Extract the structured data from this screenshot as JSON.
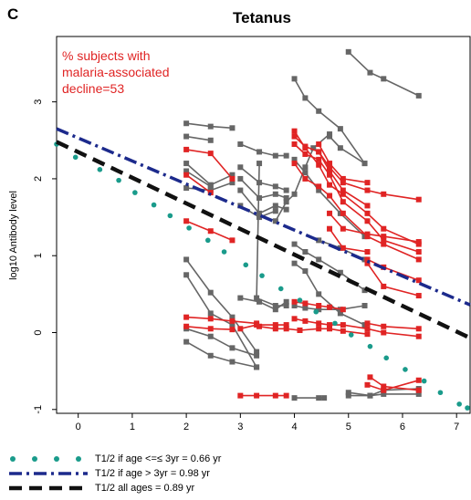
{
  "panel_label": "C",
  "chart_data": {
    "type": "line",
    "title": "Tetanus",
    "xlabel": "",
    "ylabel": "log10 Antibody level",
    "xlim": [
      -0.4,
      7.25
    ],
    "ylim": [
      -1.05,
      3.85
    ],
    "xticks": [
      0,
      1,
      2,
      3,
      4,
      5,
      6,
      7
    ],
    "yticks": [
      -1,
      0,
      1,
      2,
      3
    ],
    "annotation": [
      "% subjects with",
      "malaria-associated",
      "decline=53"
    ],
    "colors": {
      "gray": "#666666",
      "red": "#e02424",
      "teal": "#1a9b8b",
      "navy": "#1c2a8c",
      "black": "#111111"
    },
    "series": [
      {
        "color": "gray",
        "points": [
          [
            2,
            2.72
          ],
          [
            2.45,
            2.68
          ],
          [
            2.85,
            2.66
          ]
        ]
      },
      {
        "color": "gray",
        "points": [
          [
            2,
            2.55
          ],
          [
            2.45,
            2.5
          ]
        ]
      },
      {
        "color": "gray",
        "points": [
          [
            2,
            2.2
          ],
          [
            2.45,
            1.92
          ],
          [
            2.85,
            2.05
          ]
        ]
      },
      {
        "color": "gray",
        "points": [
          [
            2,
            2.1
          ],
          [
            2.45,
            1.9
          ]
        ]
      },
      {
        "color": "gray",
        "points": [
          [
            2,
            1.88
          ],
          [
            2.45,
            1.85
          ],
          [
            2.85,
            1.95
          ]
        ]
      },
      {
        "color": "gray",
        "points": [
          [
            2,
            0.95
          ],
          [
            2.45,
            0.52
          ],
          [
            2.85,
            0.2
          ],
          [
            3.3,
            -0.25
          ]
        ]
      },
      {
        "color": "gray",
        "points": [
          [
            2,
            0.75
          ],
          [
            2.45,
            0.25
          ],
          [
            2.85,
            0.1
          ],
          [
            3.3,
            -0.45
          ]
        ]
      },
      {
        "color": "gray",
        "points": [
          [
            2,
            0.05
          ],
          [
            2.45,
            -0.05
          ],
          [
            2.85,
            -0.2
          ],
          [
            3.3,
            -0.3
          ]
        ]
      },
      {
        "color": "gray",
        "points": [
          [
            2,
            -0.12
          ],
          [
            2.45,
            -0.3
          ],
          [
            2.85,
            -0.38
          ],
          [
            3.3,
            -0.45
          ]
        ]
      },
      {
        "color": "gray",
        "points": [
          [
            3,
            2.45
          ],
          [
            3.35,
            2.35
          ],
          [
            3.65,
            2.3
          ],
          [
            3.85,
            2.3
          ]
        ]
      },
      {
        "color": "gray",
        "points": [
          [
            3,
            2.15
          ],
          [
            3.35,
            1.95
          ],
          [
            3.65,
            1.9
          ],
          [
            3.85,
            1.85
          ]
        ]
      },
      {
        "color": "gray",
        "points": [
          [
            3,
            2.0
          ],
          [
            3.35,
            1.75
          ],
          [
            3.65,
            1.8
          ],
          [
            3.85,
            1.75
          ]
        ]
      },
      {
        "color": "gray",
        "points": [
          [
            3,
            1.85
          ],
          [
            3.35,
            1.55
          ],
          [
            3.65,
            1.65
          ],
          [
            3.85,
            1.6
          ]
        ]
      },
      {
        "color": "gray",
        "points": [
          [
            3,
            1.65
          ],
          [
            3.35,
            1.5
          ],
          [
            3.65,
            1.58
          ]
        ]
      },
      {
        "color": "gray",
        "points": [
          [
            3.35,
            2.2
          ],
          [
            3.3,
            0.45
          ],
          [
            3.65,
            0.35
          ],
          [
            3.85,
            0.35
          ]
        ]
      },
      {
        "color": "gray",
        "points": [
          [
            3,
            0.45
          ],
          [
            3.35,
            0.4
          ],
          [
            3.65,
            0.3
          ],
          [
            3.85,
            0.4
          ]
        ]
      },
      {
        "color": "gray",
        "points": [
          [
            3.65,
            1.45
          ],
          [
            3.85,
            1.7
          ],
          [
            4,
            1.8
          ],
          [
            4.2,
            2.15
          ],
          [
            4.35,
            2.4
          ],
          [
            4.65,
            2.58
          ]
        ]
      },
      {
        "color": "gray",
        "points": [
          [
            4,
            3.3
          ],
          [
            4.2,
            3.05
          ],
          [
            4.45,
            2.88
          ],
          [
            4.85,
            2.65
          ],
          [
            5.3,
            2.2
          ]
        ]
      },
      {
        "color": "gray",
        "points": [
          [
            4,
            2.25
          ],
          [
            4.2,
            2.08
          ],
          [
            4.45,
            1.85
          ],
          [
            4.85,
            1.55
          ],
          [
            5.3,
            1.25
          ]
        ]
      },
      {
        "color": "gray",
        "points": [
          [
            4,
            1.15
          ],
          [
            4.2,
            1.05
          ],
          [
            4.45,
            0.95
          ],
          [
            4.85,
            0.78
          ],
          [
            5.3,
            0.55
          ]
        ]
      },
      {
        "color": "gray",
        "points": [
          [
            4,
            0.9
          ],
          [
            4.2,
            0.8
          ],
          [
            4.45,
            0.5
          ],
          [
            4.85,
            0.25
          ],
          [
            5.3,
            0.1
          ]
        ]
      },
      {
        "color": "gray",
        "points": [
          [
            4,
            0.35
          ],
          [
            4.2,
            0.32
          ],
          [
            4.45,
            0.3
          ],
          [
            4.85,
            0.3
          ],
          [
            5.3,
            0.35
          ]
        ]
      },
      {
        "color": "gray",
        "points": [
          [
            4.65,
            2.55
          ],
          [
            4.85,
            2.4
          ],
          [
            5.3,
            2.2
          ]
        ]
      },
      {
        "color": "gray",
        "points": [
          [
            4.45,
            1.2
          ],
          [
            4.85,
            1.1
          ],
          [
            5.3,
            0.95
          ]
        ]
      },
      {
        "color": "gray",
        "points": [
          [
            5,
            3.65
          ],
          [
            5.4,
            3.38
          ],
          [
            5.65,
            3.3
          ],
          [
            6.3,
            3.08
          ]
        ]
      },
      {
        "color": "gray",
        "points": [
          [
            4,
            -0.85
          ],
          [
            4.45,
            -0.85
          ],
          [
            4.55,
            -0.85
          ]
        ]
      },
      {
        "color": "gray",
        "points": [
          [
            5,
            -0.82
          ],
          [
            5.4,
            -0.82
          ],
          [
            5.65,
            -0.8
          ],
          [
            6.3,
            -0.8
          ]
        ]
      },
      {
        "color": "gray",
        "points": [
          [
            5,
            -0.78
          ],
          [
            5.4,
            -0.82
          ],
          [
            5.65,
            -0.75
          ],
          [
            6.3,
            -0.73
          ]
        ]
      },
      {
        "color": "red",
        "points": [
          [
            2,
            2.38
          ],
          [
            2.45,
            2.33
          ],
          [
            2.85,
            2.0
          ]
        ]
      },
      {
        "color": "red",
        "points": [
          [
            2,
            2.05
          ],
          [
            2.45,
            1.82
          ]
        ]
      },
      {
        "color": "red",
        "points": [
          [
            2,
            1.45
          ],
          [
            2.45,
            1.32
          ],
          [
            2.85,
            1.2
          ]
        ]
      },
      {
        "color": "red",
        "points": [
          [
            2,
            0.2
          ],
          [
            2.45,
            0.18
          ],
          [
            2.85,
            0.15
          ],
          [
            3.3,
            0.12
          ]
        ]
      },
      {
        "color": "red",
        "points": [
          [
            2,
            0.08
          ],
          [
            2.45,
            0.05
          ],
          [
            2.85,
            0.04
          ]
        ]
      },
      {
        "color": "red",
        "points": [
          [
            3,
            0.05
          ],
          [
            3.3,
            0.1
          ],
          [
            3.65,
            0.1
          ],
          [
            3.85,
            0.1
          ]
        ]
      },
      {
        "color": "red",
        "points": [
          [
            3,
            -0.82
          ],
          [
            3.3,
            -0.82
          ],
          [
            3.65,
            -0.82
          ],
          [
            3.85,
            -0.82
          ]
        ]
      },
      {
        "color": "red",
        "points": [
          [
            3.35,
            0.08
          ],
          [
            3.65,
            0.05
          ],
          [
            3.85,
            0.05
          ],
          [
            4.1,
            0.03
          ]
        ]
      },
      {
        "color": "red",
        "points": [
          [
            4,
            2.62
          ],
          [
            4.2,
            2.4
          ],
          [
            4.45,
            2.18
          ],
          [
            4.65,
            1.92
          ],
          [
            4.9,
            1.8
          ],
          [
            5.35,
            1.55
          ],
          [
            5.65,
            1.35
          ],
          [
            6.3,
            1.15
          ]
        ]
      },
      {
        "color": "red",
        "points": [
          [
            4,
            2.55
          ],
          [
            4.2,
            2.42
          ],
          [
            4.45,
            2.35
          ],
          [
            4.65,
            2.15
          ],
          [
            4.9,
            1.95
          ],
          [
            5.35,
            1.85
          ],
          [
            5.65,
            1.8
          ],
          [
            6.3,
            1.73
          ]
        ]
      },
      {
        "color": "red",
        "points": [
          [
            4,
            2.45
          ],
          [
            4.2,
            2.32
          ],
          [
            4.45,
            2.25
          ],
          [
            4.65,
            2.05
          ],
          [
            4.9,
            1.7
          ],
          [
            5.35,
            1.45
          ],
          [
            5.65,
            1.2
          ],
          [
            6.3,
            1.05
          ]
        ]
      },
      {
        "color": "red",
        "points": [
          [
            4,
            2.2
          ],
          [
            4.2,
            2.0
          ],
          [
            4.45,
            1.9
          ],
          [
            4.65,
            1.78
          ],
          [
            4.9,
            1.55
          ],
          [
            5.35,
            1.25
          ],
          [
            5.65,
            1.15
          ],
          [
            6.3,
            0.95
          ]
        ]
      },
      {
        "color": "red",
        "points": [
          [
            4.45,
            2.45
          ],
          [
            4.65,
            2.2
          ],
          [
            4.9,
            2.0
          ],
          [
            5.35,
            1.95
          ]
        ]
      },
      {
        "color": "red",
        "points": [
          [
            4.45,
            2.35
          ],
          [
            4.65,
            2.1
          ],
          [
            4.9,
            1.85
          ],
          [
            5.35,
            1.65
          ]
        ]
      },
      {
        "color": "red",
        "points": [
          [
            4.65,
            1.55
          ],
          [
            4.9,
            1.35
          ],
          [
            5.35,
            1.28
          ],
          [
            5.65,
            1.25
          ],
          [
            6.3,
            1.18
          ]
        ]
      },
      {
        "color": "red",
        "points": [
          [
            4.65,
            1.35
          ],
          [
            4.9,
            1.1
          ],
          [
            5.35,
            1.05
          ]
        ]
      },
      {
        "color": "red",
        "points": [
          [
            5.35,
            0.95
          ],
          [
            5.65,
            0.85
          ],
          [
            6.3,
            0.68
          ]
        ]
      },
      {
        "color": "red",
        "points": [
          [
            5.35,
            0.9
          ],
          [
            5.65,
            0.6
          ],
          [
            6.3,
            0.48
          ]
        ]
      },
      {
        "color": "red",
        "points": [
          [
            4,
            0.4
          ],
          [
            4.2,
            0.38
          ],
          [
            4.45,
            0.35
          ],
          [
            4.65,
            0.33
          ],
          [
            4.9,
            0.3
          ]
        ]
      },
      {
        "color": "red",
        "points": [
          [
            4,
            0.18
          ],
          [
            4.2,
            0.15
          ],
          [
            4.45,
            0.12
          ],
          [
            4.65,
            0.1
          ],
          [
            4.9,
            0.1
          ],
          [
            5.35,
            0.05
          ],
          [
            5.65,
            0.0
          ],
          [
            6.3,
            -0.05
          ]
        ]
      },
      {
        "color": "red",
        "points": [
          [
            4.1,
            0.03
          ],
          [
            4.45,
            0.05
          ],
          [
            4.65,
            0.05
          ],
          [
            4.9,
            0.02
          ],
          [
            5.35,
            -0.02
          ]
        ]
      },
      {
        "color": "red",
        "points": [
          [
            5.35,
            0.12
          ],
          [
            5.65,
            0.08
          ],
          [
            6.3,
            0.05
          ]
        ]
      },
      {
        "color": "red",
        "points": [
          [
            5.35,
            -0.68
          ],
          [
            5.65,
            -0.75
          ],
          [
            6.3,
            -0.62
          ]
        ]
      },
      {
        "color": "red",
        "points": [
          [
            5.4,
            -0.58
          ],
          [
            5.65,
            -0.7
          ],
          [
            6.3,
            -0.75
          ]
        ]
      }
    ],
    "teal_points": [
      [
        -0.4,
        2.45
      ],
      [
        -0.05,
        2.28
      ],
      [
        0.4,
        2.12
      ],
      [
        0.75,
        1.98
      ],
      [
        1.05,
        1.82
      ],
      [
        1.4,
        1.66
      ],
      [
        1.7,
        1.52
      ],
      [
        2.05,
        1.36
      ],
      [
        2.4,
        1.2
      ],
      [
        2.7,
        1.05
      ],
      [
        3.1,
        0.88
      ],
      [
        3.4,
        0.74
      ],
      [
        3.75,
        0.57
      ],
      [
        4.1,
        0.42
      ],
      [
        4.4,
        0.27
      ],
      [
        4.75,
        0.12
      ],
      [
        5.05,
        -0.03
      ],
      [
        5.4,
        -0.18
      ],
      [
        5.7,
        -0.33
      ],
      [
        6.05,
        -0.48
      ],
      [
        6.4,
        -0.63
      ],
      [
        6.7,
        -0.78
      ],
      [
        7.05,
        -0.93
      ],
      [
        7.2,
        -0.98
      ]
    ],
    "legend": [
      {
        "label": "T1/2 if age <=≤ 3yr = 0.66 yr",
        "color": "teal",
        "style": "dots"
      },
      {
        "label": "T1/2 if age > 3yr = 0.98 yr",
        "color": "navy",
        "style": "dashdot"
      },
      {
        "label": "T1/2 all ages = 0.89 yr",
        "color": "black",
        "style": "dashed"
      }
    ],
    "fit_lines": [
      {
        "color": "navy",
        "style": "dashdot",
        "from": [
          -0.4,
          2.65
        ],
        "to": [
          7.25,
          0.36
        ]
      },
      {
        "color": "black",
        "style": "dashed",
        "from": [
          -0.4,
          2.48
        ],
        "to": [
          7.25,
          -0.07
        ]
      }
    ]
  }
}
